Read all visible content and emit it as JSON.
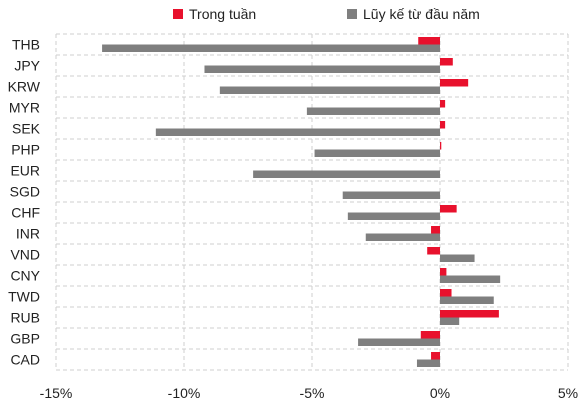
{
  "chart_data": {
    "type": "bar",
    "orientation": "horizontal",
    "categories": [
      "THB",
      "JPY",
      "KRW",
      "MYR",
      "SEK",
      "PHP",
      "EUR",
      "SGD",
      "CHF",
      "INR",
      "VND",
      "CNY",
      "TWD",
      "RUB",
      "GBP",
      "CAD"
    ],
    "series": [
      {
        "name": "Trong tuần",
        "color": "#e8112d",
        "values": [
          -0.85,
          0.5,
          1.1,
          0.2,
          0.2,
          0.05,
          0.0,
          0.0,
          0.65,
          -0.35,
          -0.5,
          0.25,
          0.45,
          2.3,
          -0.75,
          -0.35
        ]
      },
      {
        "name": "Lũy kế từ đầu năm",
        "color": "#7f7f7f",
        "values": [
          -13.2,
          -9.2,
          -8.6,
          -5.2,
          -11.1,
          -4.9,
          -7.3,
          -3.8,
          -3.6,
          -2.9,
          1.35,
          2.35,
          2.1,
          0.75,
          -3.2,
          -0.9
        ]
      }
    ],
    "xlim": [
      -15,
      5
    ],
    "xticks": [
      -15,
      -10,
      -5,
      0,
      5
    ],
    "xtick_labels": [
      "-15%",
      "-10%",
      "-5%",
      "0%",
      "5%"
    ],
    "grid": true,
    "legend_position": "top"
  }
}
